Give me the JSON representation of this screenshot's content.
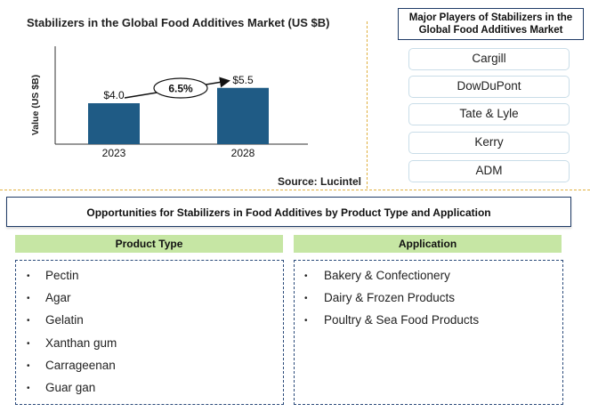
{
  "chart_data": {
    "type": "bar",
    "title": "Stabilizers in the Global Food Additives Market  (US $B)",
    "ylabel": "Value (US $B)",
    "categories": [
      "2023",
      "2028"
    ],
    "values": [
      4.0,
      5.5
    ],
    "data_labels": [
      "$4.0",
      "$5.5"
    ],
    "cagr_label": "6.5%",
    "bar_color": "#1f5b85",
    "source": "Source: Lucintel"
  },
  "players": {
    "title": "Major Players of Stabilizers in the Global Food Additives  Market",
    "items": [
      "Cargill",
      "DowDuPont",
      "Tate & Lyle",
      "Kerry",
      "ADM"
    ]
  },
  "opportunities": {
    "title": "Opportunities  for Stabilizers in Food  Additives  by Product Type  and Application",
    "product_type": {
      "title": "Product Type",
      "items": [
        "Pectin",
        "Agar",
        "Gelatin",
        "Xanthan gum",
        "Carrageenan",
        "Guar gan"
      ]
    },
    "application": {
      "title": "Application",
      "items": [
        "Bakery & Confectionery",
        "Dairy & Frozen Products",
        "Poultry & Sea Food Products"
      ]
    }
  },
  "colors": {
    "header_border": "#1f3b66",
    "column_header_bg": "#c6e6a4",
    "divider": "#e0b040"
  }
}
